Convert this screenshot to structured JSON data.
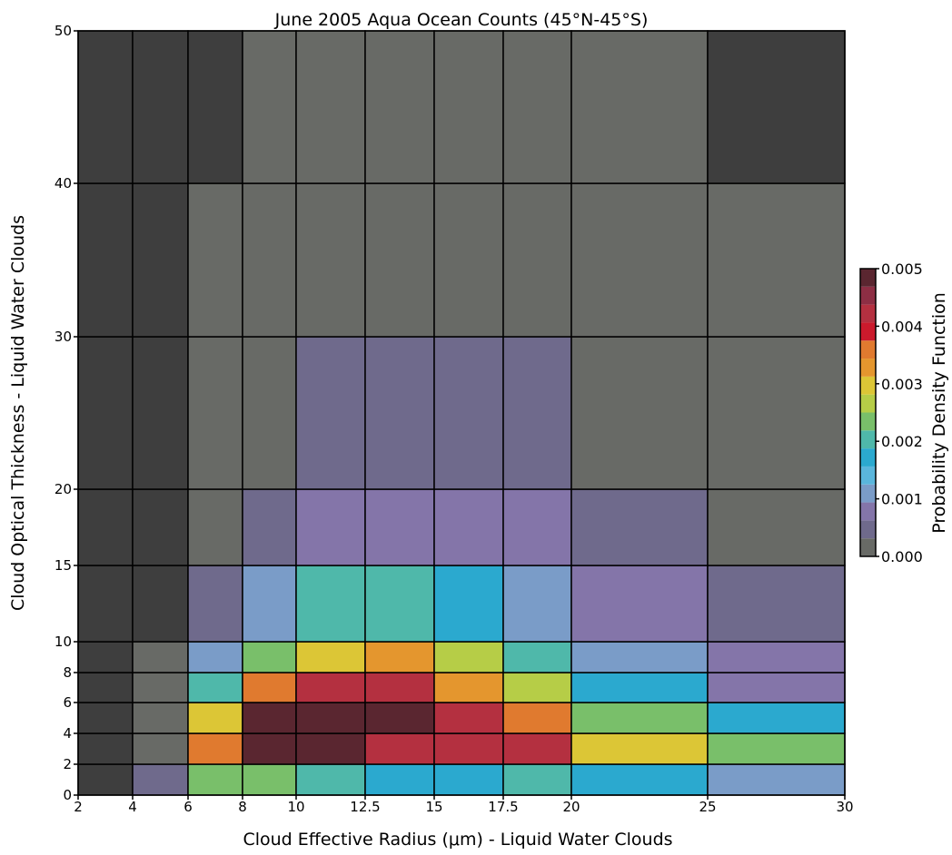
{
  "chart_data": {
    "type": "heatmap",
    "title": "June 2005 Aqua Ocean Counts (45°N-45°S)",
    "xlabel": "Cloud Effective Radius (μm) - Liquid Water Clouds",
    "ylabel": "Cloud Optical Thickness - Liquid Water Clouds",
    "colorbar_label": "Probability Density Function",
    "x_bins": [
      2,
      4,
      6,
      8,
      10,
      12.5,
      15,
      17.5,
      20,
      25,
      30
    ],
    "y_bins": [
      0,
      2,
      4,
      6,
      8,
      10,
      15,
      20,
      30,
      40,
      50
    ],
    "x_tick_labels": [
      "2",
      "4",
      "6",
      "8",
      "10",
      "12.5",
      "15",
      "17.5",
      "20",
      "25",
      "30"
    ],
    "y_tick_labels": [
      "0",
      "2",
      "4",
      "6",
      "8",
      "10",
      "15",
      "20",
      "30",
      "40",
      "50"
    ],
    "colorbar_ticks": [
      "0.000",
      "0.001",
      "0.002",
      "0.003",
      "0.004",
      "0.005"
    ],
    "colorbar_range": [
      0,
      0.005
    ],
    "colorbar_colors": [
      "#686a66",
      "#6f6a8c",
      "#8475a9",
      "#7a9cc8",
      "#5ab6dc",
      "#2ba9cf",
      "#4fb8aa",
      "#79bf6a",
      "#b6cd47",
      "#dcc636",
      "#e4962e",
      "#e07a2f",
      "#cb1a2c",
      "#b43040",
      "#8d2e44",
      "#5a2630"
    ],
    "missing_color": "#3e3e3e",
    "values": [
      [
        null,
        0.0005,
        0.0024,
        0.0024,
        0.0021,
        0.0016,
        0.0016,
        0.0021,
        0.0016,
        0.0012
      ],
      [
        null,
        0.0,
        0.0037,
        0.0047,
        0.0049,
        0.0043,
        0.0043,
        0.0043,
        0.0029,
        0.0024
      ],
      [
        null,
        0.0,
        0.0029,
        0.0047,
        0.005,
        0.0049,
        0.0043,
        0.0037,
        0.0024,
        0.0016
      ],
      [
        null,
        0.0,
        0.0021,
        0.0037,
        0.0043,
        0.0043,
        0.0032,
        0.0026,
        0.0016,
        0.0009
      ],
      [
        null,
        0.0,
        0.0012,
        0.0024,
        0.0029,
        0.0032,
        0.0026,
        0.0021,
        0.0012,
        0.0009
      ],
      [
        null,
        null,
        0.0005,
        0.0012,
        0.0021,
        0.0021,
        0.0016,
        0.0012,
        0.0009,
        0.0005
      ],
      [
        null,
        null,
        0.0,
        0.0005,
        0.0009,
        0.0009,
        0.0009,
        0.0009,
        0.0005,
        0.0
      ],
      [
        null,
        null,
        0.0,
        0.0,
        0.0005,
        0.0005,
        0.0005,
        0.0005,
        0.0,
        0.0
      ],
      [
        null,
        null,
        0.0,
        0.0,
        0.0,
        0.0,
        0.0,
        0.0,
        0.0,
        0.0
      ],
      [
        null,
        null,
        null,
        0.0,
        0.0,
        0.0,
        0.0,
        0.0,
        0.0,
        null
      ]
    ]
  }
}
